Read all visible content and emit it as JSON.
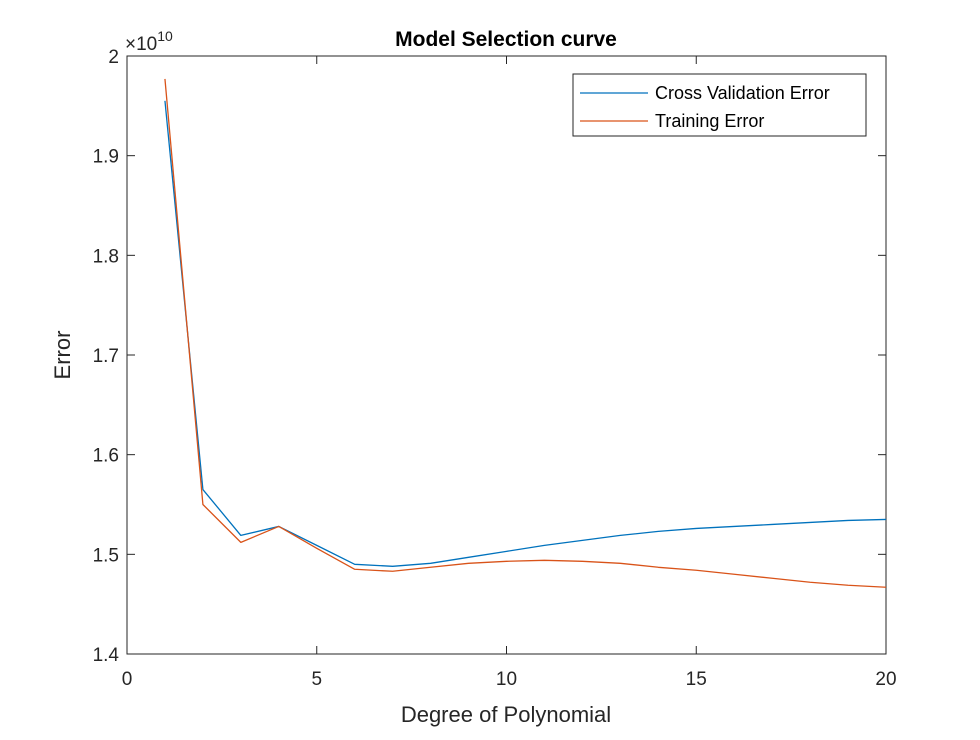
{
  "chart_data": {
    "type": "line",
    "title": "Model Selection curve",
    "xlabel": "Degree of Polynomial",
    "ylabel": "Error",
    "y_exponent": {
      "base": "×10",
      "power": "10"
    },
    "xlim": [
      0,
      20
    ],
    "ylim": [
      1.4,
      2.0
    ],
    "xticks": [
      0,
      5,
      10,
      15,
      20
    ],
    "xtick_labels": [
      "0",
      "5",
      "10",
      "15",
      "20"
    ],
    "yticks": [
      1.4,
      1.5,
      1.6,
      1.7,
      1.8,
      1.9,
      2.0
    ],
    "ytick_labels": [
      "1.4",
      "1.5",
      "1.6",
      "1.7",
      "1.8",
      "1.9",
      "2"
    ],
    "grid": false,
    "legend_position": "top-right",
    "x": [
      1,
      2,
      3,
      4,
      5,
      6,
      7,
      8,
      9,
      10,
      11,
      12,
      13,
      14,
      15,
      16,
      17,
      18,
      19,
      20
    ],
    "series": [
      {
        "name": "Cross Validation Error",
        "color": "#0072BD",
        "values": [
          1.955,
          1.565,
          1.519,
          1.528,
          1.509,
          1.49,
          1.488,
          1.491,
          1.497,
          1.503,
          1.509,
          1.514,
          1.519,
          1.523,
          1.526,
          1.528,
          1.53,
          1.532,
          1.534,
          1.535
        ]
      },
      {
        "name": "Training Error",
        "color": "#D95319",
        "values": [
          1.977,
          1.55,
          1.512,
          1.528,
          1.506,
          1.485,
          1.483,
          1.487,
          1.491,
          1.493,
          1.494,
          1.493,
          1.491,
          1.487,
          1.484,
          1.48,
          1.476,
          1.472,
          1.469,
          1.467
        ]
      }
    ]
  }
}
